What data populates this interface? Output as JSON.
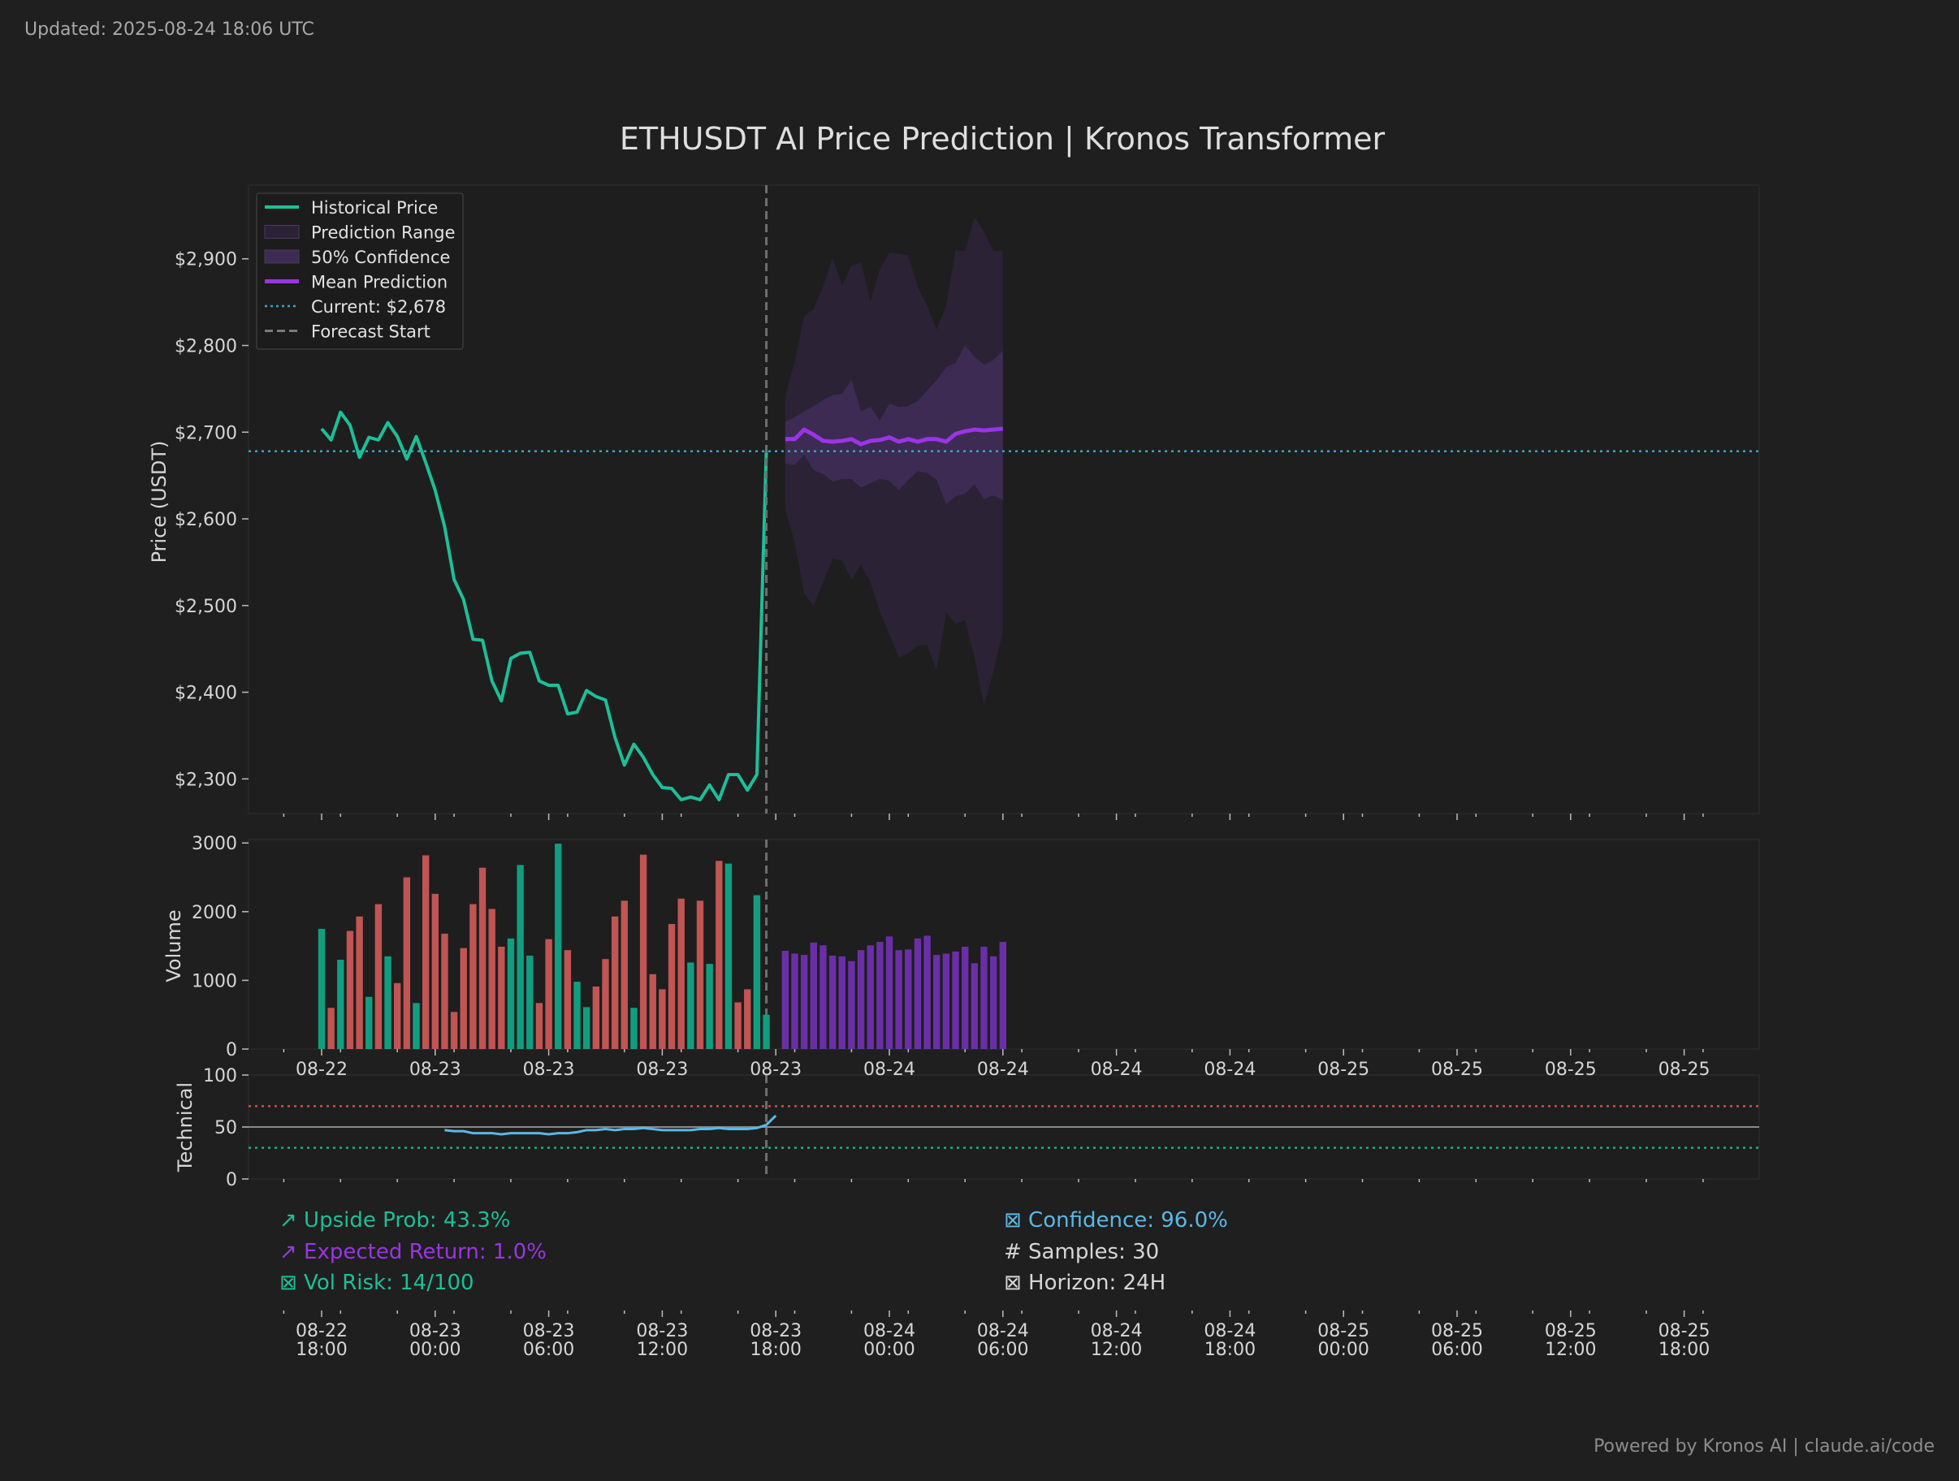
{
  "updated_text": "Updated: 2025-08-24 18:06 UTC",
  "footer_text": "Powered by Kronos AI | claude.ai/code",
  "colors": {
    "background": "#1f1f1f",
    "panel": "#1e1e1e",
    "historical": "#1dbf98",
    "prediction": "#9b34e6",
    "range_outer": "#2b2236",
    "range_inner": "#3d2b54",
    "current": "#3aa3c7",
    "vol_up": "#119e80",
    "vol_down": "#c05553",
    "vol_pred": "#6a2fa6",
    "rsi": "#5ab8e6",
    "rsi_overbought": "#c9524f",
    "rsi_oversold": "#17b47d",
    "stat_green": "#1dbf98",
    "stat_purple": "#9b34e6",
    "stat_blue": "#5ab8e6",
    "stat_white": "#d6d6d6"
  },
  "chart_data": {
    "type": "line",
    "title": "ETHUSDT AI Price Prediction | Kronos Transformer",
    "legend_position": "top-left",
    "legend": [
      "Historical Price",
      "Prediction Range",
      "50% Confidence",
      "Mean Prediction",
      "Current: $2,678",
      "Forecast Start"
    ],
    "price_panel": {
      "ylabel": "Price (USDT)",
      "ylim": [
        2260,
        2985
      ],
      "yticks": [
        2300,
        2400,
        2500,
        2600,
        2700,
        2800,
        2900
      ],
      "ytick_labels": [
        "$2,300",
        "$2,400",
        "$2,500",
        "$2,600",
        "$2,700",
        "$2,800",
        "$2,900"
      ],
      "current_price": 2678,
      "forecast_start_hour": 23.5,
      "historical": {
        "name": "Historical Price",
        "start_hour": 0,
        "step_hours": 0.5,
        "values": [
          2704,
          2691,
          2723,
          2708,
          2671,
          2694,
          2691,
          2711,
          2695,
          2669,
          2695,
          2665,
          2633,
          2591,
          2530,
          2507,
          2461,
          2460,
          2413,
          2390,
          2439,
          2445,
          2446,
          2413,
          2408,
          2408,
          2375,
          2377,
          2402,
          2395,
          2391,
          2348,
          2316,
          2340,
          2325,
          2305,
          2290,
          2289,
          2276,
          2279,
          2276,
          2293,
          2276,
          2305,
          2305,
          2287,
          2305,
          2678
        ]
      },
      "prediction": {
        "start_hour": 24.5,
        "step_hours": 0.5,
        "mean": [
          2692,
          2692,
          2703,
          2697,
          2690,
          2689,
          2690,
          2692,
          2686,
          2690,
          2691,
          2694,
          2689,
          2692,
          2689,
          2692,
          2692,
          2689,
          2698,
          2701,
          2703,
          2702,
          2703,
          2704
        ],
        "q25": [
          2664,
          2662,
          2674,
          2656,
          2652,
          2643,
          2646,
          2646,
          2636,
          2641,
          2646,
          2644,
          2633,
          2645,
          2655,
          2653,
          2645,
          2617,
          2626,
          2629,
          2640,
          2623,
          2627,
          2622
        ],
        "q75": [
          2712,
          2717,
          2724,
          2730,
          2737,
          2743,
          2744,
          2760,
          2724,
          2729,
          2713,
          2733,
          2729,
          2730,
          2736,
          2748,
          2760,
          2775,
          2780,
          2800,
          2787,
          2778,
          2783,
          2794
        ],
        "min": [
          2612,
          2572,
          2514,
          2500,
          2527,
          2554,
          2552,
          2530,
          2547,
          2527,
          2493,
          2467,
          2440,
          2445,
          2454,
          2454,
          2425,
          2492,
          2479,
          2483,
          2440,
          2385,
          2424,
          2470
        ],
        "max": [
          2742,
          2781,
          2834,
          2842,
          2868,
          2901,
          2869,
          2892,
          2896,
          2851,
          2888,
          2907,
          2906,
          2904,
          2867,
          2846,
          2818,
          2846,
          2910,
          2909,
          2948,
          2931,
          2909,
          2909
        ]
      }
    },
    "volume_panel": {
      "ylabel": "Volume",
      "ylim": [
        0,
        3050
      ],
      "yticks": [
        0,
        1000,
        2000,
        3000
      ],
      "historical_start_hour": 0,
      "step_hours": 0.5,
      "historical": [
        1750,
        600,
        1300,
        1720,
        1930,
        760,
        2110,
        1350,
        960,
        2500,
        670,
        2820,
        2260,
        1680,
        540,
        1470,
        2110,
        2640,
        2040,
        1490,
        1610,
        2680,
        1360,
        670,
        1600,
        2990,
        1440,
        980,
        610,
        910,
        1310,
        1930,
        2160,
        600,
        2830,
        1090,
        870,
        1820,
        2190,
        1260,
        2160,
        1240,
        2740,
        2700,
        680,
        870,
        2240,
        500
      ],
      "historical_direction": [
        "up",
        "down",
        "up",
        "down",
        "down",
        "up",
        "down",
        "up",
        "down",
        "down",
        "up",
        "down",
        "down",
        "down",
        "down",
        "down",
        "down",
        "down",
        "down",
        "down",
        "up",
        "up",
        "up",
        "down",
        "down",
        "up",
        "down",
        "up",
        "up",
        "down",
        "down",
        "down",
        "down",
        "up",
        "down",
        "down",
        "down",
        "down",
        "down",
        "up",
        "down",
        "up",
        "down",
        "up",
        "down",
        "down",
        "up",
        "up"
      ],
      "prediction_start_hour": 24.5,
      "prediction": [
        1430,
        1390,
        1370,
        1550,
        1510,
        1360,
        1350,
        1280,
        1440,
        1510,
        1560,
        1640,
        1440,
        1450,
        1610,
        1650,
        1370,
        1390,
        1420,
        1490,
        1250,
        1490,
        1350,
        1560
      ]
    },
    "technical_panel": {
      "ylabel": "Technical",
      "ylim": [
        0,
        100
      ],
      "yticks": [
        0,
        50,
        100
      ],
      "midline": 50,
      "overbought": 70,
      "oversold": 30,
      "rsi_start_hour": 6.5,
      "step_hours": 0.5,
      "rsi": [
        47,
        46,
        46,
        44,
        44,
        44,
        43,
        44,
        44,
        44,
        44,
        43,
        44,
        44,
        45,
        47,
        47,
        48,
        47,
        48,
        48,
        49,
        48,
        47,
        47,
        47,
        47,
        48,
        48,
        49,
        48,
        48,
        48,
        49,
        52,
        61
      ]
    },
    "x_axis": {
      "tick_hours": [
        0,
        6,
        12,
        18,
        24,
        30,
        36,
        42,
        48,
        54,
        60,
        66,
        72
      ],
      "date_labels": [
        "08-22",
        "08-23",
        "08-23",
        "08-23",
        "08-23",
        "08-24",
        "08-24",
        "08-24",
        "08-24",
        "08-25",
        "08-25",
        "08-25",
        "08-25"
      ],
      "time_labels": [
        "18:00",
        "00:00",
        "06:00",
        "12:00",
        "18:00",
        "00:00",
        "06:00",
        "12:00",
        "18:00",
        "00:00",
        "06:00",
        "12:00",
        "18:00"
      ]
    }
  },
  "stats": {
    "upside": "↗ Upside Prob: 43.3%",
    "expected": "↗ Expected Return: 1.0%",
    "volrisk": "⊠ Vol Risk: 14/100",
    "confidence": "⊠ Confidence: 96.0%",
    "samples": "# Samples: 30",
    "horizon": "⊠ Horizon: 24H"
  }
}
